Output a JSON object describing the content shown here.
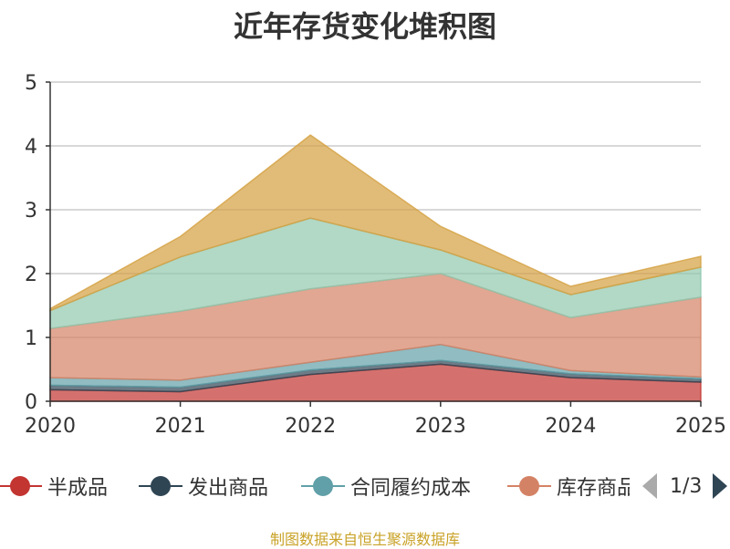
{
  "title": "近年存货变化堆积图",
  "source_note": "制图数据来自恒生聚源数据库",
  "pager": {
    "text": "1/3"
  },
  "chart_data": {
    "type": "area",
    "stacked": true,
    "title": "近年存货变化堆积图",
    "xlabel": "",
    "ylabel": "",
    "x": [
      "2020",
      "2021",
      "2022",
      "2023",
      "2024",
      "2025"
    ],
    "ylim": [
      0,
      5
    ],
    "yticks": [
      "0",
      "1",
      "2",
      "3",
      "4",
      "5"
    ],
    "grid": true,
    "legend_position": "bottom",
    "series": [
      {
        "name": "半成品",
        "color": "#c23531",
        "values": [
          0.18,
          0.15,
          0.42,
          0.58,
          0.37,
          0.3
        ]
      },
      {
        "name": "发出商品",
        "color": "#2f4554",
        "values": [
          0.07,
          0.07,
          0.07,
          0.06,
          0.06,
          0.05
        ]
      },
      {
        "name": "合同履约成本",
        "color": "#61a0a8",
        "values": [
          0.12,
          0.11,
          0.12,
          0.25,
          0.05,
          0.03
        ]
      },
      {
        "name": "库存商品",
        "color": "#d48265",
        "values": [
          0.77,
          1.08,
          1.15,
          1.11,
          0.83,
          1.25
        ]
      },
      {
        "name": "",
        "color": "#91c7ae",
        "values": [
          0.28,
          0.85,
          1.11,
          0.37,
          0.36,
          0.47
        ]
      },
      {
        "name": "",
        "color": "#d4a040",
        "values": [
          0.03,
          0.32,
          1.3,
          0.37,
          0.13,
          0.17
        ]
      }
    ]
  },
  "legend": {
    "items": [
      {
        "label": "半成品",
        "color": "#c23531"
      },
      {
        "label": "发出商品",
        "color": "#2f4554"
      },
      {
        "label": "合同履约成本",
        "color": "#61a0a8"
      },
      {
        "label": "库存商品",
        "color": "#d48265"
      }
    ]
  }
}
